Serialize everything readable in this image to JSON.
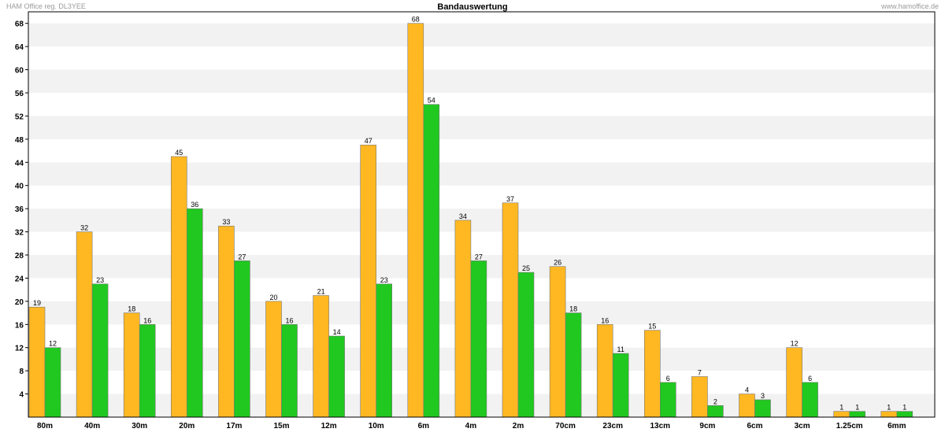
{
  "header": {
    "left_note": "HAM Office reg. DL3YEE",
    "right_note": "www.hamoffice.de"
  },
  "colors": {
    "series1": "#ffb822",
    "series2": "#20c820",
    "band_stripe": "#f2f2f2",
    "background": "#ffffff"
  },
  "chart_data": {
    "type": "bar",
    "title": "Bandauswertung",
    "xlabel": "",
    "ylabel": "",
    "ylim": [
      0,
      70
    ],
    "yticks": [
      4,
      8,
      12,
      16,
      20,
      24,
      28,
      32,
      36,
      40,
      44,
      48,
      52,
      56,
      60,
      64,
      68
    ],
    "grid": "alternating horizontal bands",
    "legend": "none",
    "categories": [
      "80m",
      "40m",
      "30m",
      "20m",
      "17m",
      "15m",
      "12m",
      "10m",
      "6m",
      "4m",
      "2m",
      "70cm",
      "23cm",
      "13cm",
      "9cm",
      "6cm",
      "3cm",
      "1.25cm",
      "6mm"
    ],
    "series": [
      {
        "color": "#ffb822",
        "values": [
          19,
          32,
          18,
          45,
          33,
          20,
          21,
          47,
          68,
          34,
          37,
          26,
          16,
          15,
          7,
          4,
          12,
          1,
          1
        ]
      },
      {
        "color": "#20c820",
        "values": [
          12,
          23,
          16,
          36,
          27,
          16,
          14,
          23,
          54,
          27,
          25,
          18,
          11,
          6,
          2,
          3,
          6,
          1,
          1
        ]
      }
    ]
  }
}
